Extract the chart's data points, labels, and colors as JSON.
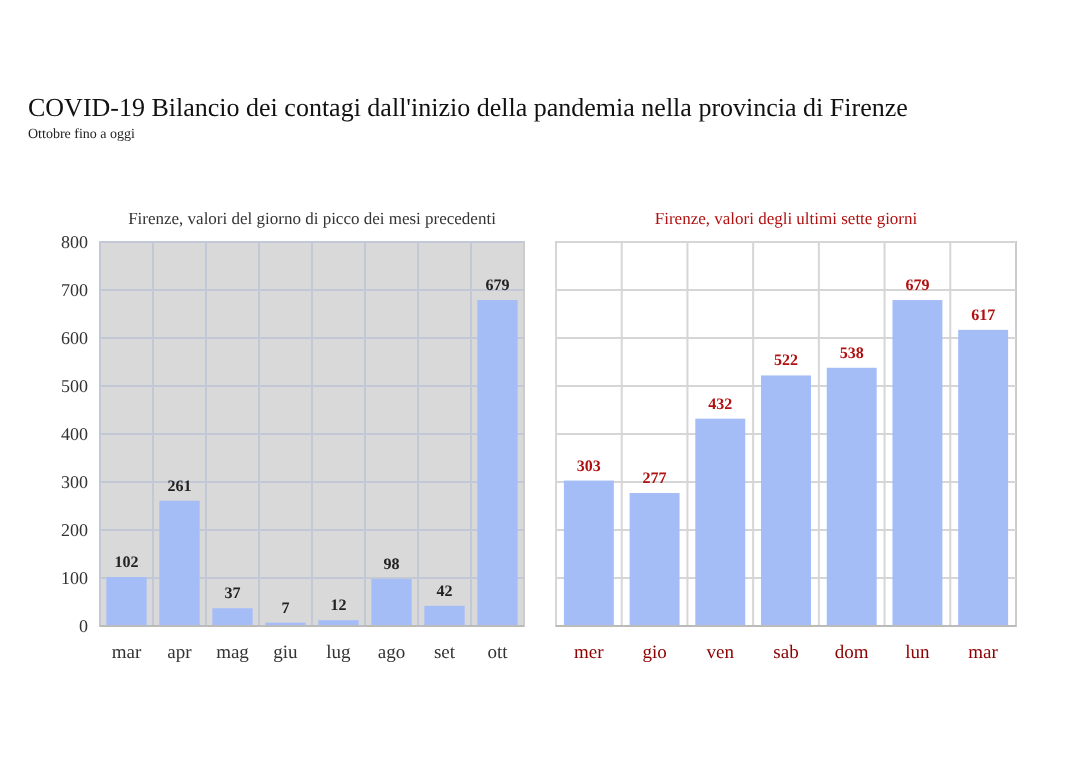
{
  "chart_data": [
    {
      "type": "bar",
      "title": "COVID-19 Bilancio dei contagi dall'inizio della pandemia nella provincia di Firenze",
      "subtitle": "Ottobre fino a oggi",
      "annotations": [
        "Firenze, valori del giorno di picco dei mesi precedenti"
      ],
      "categories": [
        "mar",
        "apr",
        "mag",
        "giu",
        "lug",
        "ago",
        "set",
        "ott"
      ],
      "values": [
        102,
        261,
        37,
        7,
        12,
        98,
        42,
        679
      ],
      "color": "#a4bdf7",
      "ylim": [
        0,
        800
      ],
      "yticks": [
        0,
        100,
        200,
        300,
        400,
        500,
        600,
        700,
        800
      ],
      "grid": true,
      "data_labels": true
    },
    {
      "type": "bar",
      "annotations": [
        "Firenze, valori degli ultimi sette giorni"
      ],
      "categories": [
        "mer",
        "gio",
        "ven",
        "sab",
        "dom",
        "lun",
        "mar"
      ],
      "values": [
        303,
        277,
        432,
        522,
        538,
        679,
        617
      ],
      "color": "#a4bdf7",
      "ylim": [
        0,
        800
      ],
      "yticks": [
        0,
        100,
        200,
        300,
        400,
        500,
        600,
        700,
        800
      ],
      "grid": true,
      "data_labels": true,
      "tick_labels": "x"
    }
  ]
}
